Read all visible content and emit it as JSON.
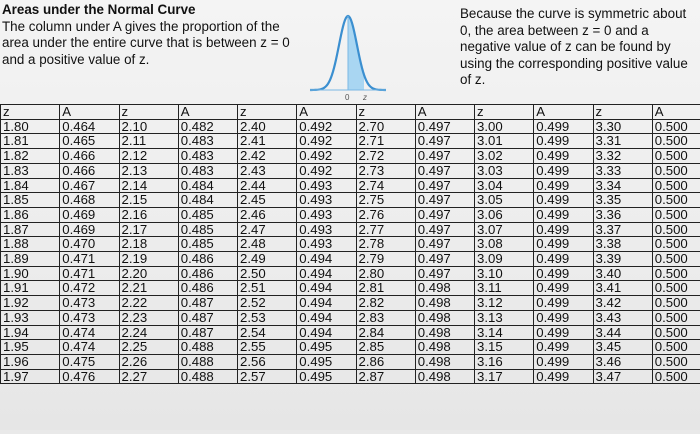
{
  "header": {
    "title": "Areas under the Normal Curve",
    "description": "The column under A gives the proportion of the area under the entire curve that is between z = 0 and a positive value of z.",
    "note": "Because the curve is symmetric about 0, the area between z = 0 and a negative value of z can be found by using the corresponding positive value of z."
  },
  "curve": {
    "zero_label": "0",
    "z_label": "z",
    "line_color": "#3b8fd0",
    "shade_color": "#a9d6f2"
  },
  "table": {
    "headers": [
      "z",
      "A",
      "z",
      "A",
      "z",
      "A",
      "z",
      "A",
      "z",
      "A",
      "z",
      "A"
    ],
    "rows": [
      [
        "1.80",
        "0.464",
        "2.10",
        "0.482",
        "2.40",
        "0.492",
        "2.70",
        "0.497",
        "3.00",
        "0.499",
        "3.30",
        "0.500"
      ],
      [
        "1.81",
        "0.465",
        "2.11",
        "0.483",
        "2.41",
        "0.492",
        "2.71",
        "0.497",
        "3.01",
        "0.499",
        "3.31",
        "0.500"
      ],
      [
        "1.82",
        "0.466",
        "2.12",
        "0.483",
        "2.42",
        "0.492",
        "2.72",
        "0.497",
        "3.02",
        "0.499",
        "3.32",
        "0.500"
      ],
      [
        "1.83",
        "0.466",
        "2.13",
        "0.483",
        "2.43",
        "0.492",
        "2.73",
        "0.497",
        "3.03",
        "0.499",
        "3.33",
        "0.500"
      ],
      [
        "1.84",
        "0.467",
        "2.14",
        "0.484",
        "2.44",
        "0.493",
        "2.74",
        "0.497",
        "3.04",
        "0.499",
        "3.34",
        "0.500"
      ],
      [
        "1.85",
        "0.468",
        "2.15",
        "0.484",
        "2.45",
        "0.493",
        "2.75",
        "0.497",
        "3.05",
        "0.499",
        "3.35",
        "0.500"
      ],
      [
        "1.86",
        "0.469",
        "2.16",
        "0.485",
        "2.46",
        "0.493",
        "2.76",
        "0.497",
        "3.06",
        "0.499",
        "3.36",
        "0.500"
      ],
      [
        "1.87",
        "0.469",
        "2.17",
        "0.485",
        "2.47",
        "0.493",
        "2.77",
        "0.497",
        "3.07",
        "0.499",
        "3.37",
        "0.500"
      ],
      [
        "1.88",
        "0.470",
        "2.18",
        "0.485",
        "2.48",
        "0.493",
        "2.78",
        "0.497",
        "3.08",
        "0.499",
        "3.38",
        "0.500"
      ],
      [
        "1.89",
        "0.471",
        "2.19",
        "0.486",
        "2.49",
        "0.494",
        "2.79",
        "0.497",
        "3.09",
        "0.499",
        "3.39",
        "0.500"
      ],
      [
        "1.90",
        "0.471",
        "2.20",
        "0.486",
        "2.50",
        "0.494",
        "2.80",
        "0.497",
        "3.10",
        "0.499",
        "3.40",
        "0.500"
      ],
      [
        "1.91",
        "0.472",
        "2.21",
        "0.486",
        "2.51",
        "0.494",
        "2.81",
        "0.498",
        "3.11",
        "0.499",
        "3.41",
        "0.500"
      ],
      [
        "1.92",
        "0.473",
        "2.22",
        "0.487",
        "2.52",
        "0.494",
        "2.82",
        "0.498",
        "3.12",
        "0.499",
        "3.42",
        "0.500"
      ],
      [
        "1.93",
        "0.473",
        "2.23",
        "0.487",
        "2.53",
        "0.494",
        "2.83",
        "0.498",
        "3.13",
        "0.499",
        "3.43",
        "0.500"
      ],
      [
        "1.94",
        "0.474",
        "2.24",
        "0.487",
        "2.54",
        "0.494",
        "2.84",
        "0.498",
        "3.14",
        "0.499",
        "3.44",
        "0.500"
      ],
      [
        "1.95",
        "0.474",
        "2.25",
        "0.488",
        "2.55",
        "0.495",
        "2.85",
        "0.498",
        "3.15",
        "0.499",
        "3.45",
        "0.500"
      ],
      [
        "1.96",
        "0.475",
        "2.26",
        "0.488",
        "2.56",
        "0.495",
        "2.86",
        "0.498",
        "3.16",
        "0.499",
        "3.46",
        "0.500"
      ],
      [
        "1.97",
        "0.476",
        "2.27",
        "0.488",
        "2.57",
        "0.495",
        "2.87",
        "0.498",
        "3.17",
        "0.499",
        "3.47",
        "0.500"
      ]
    ]
  }
}
